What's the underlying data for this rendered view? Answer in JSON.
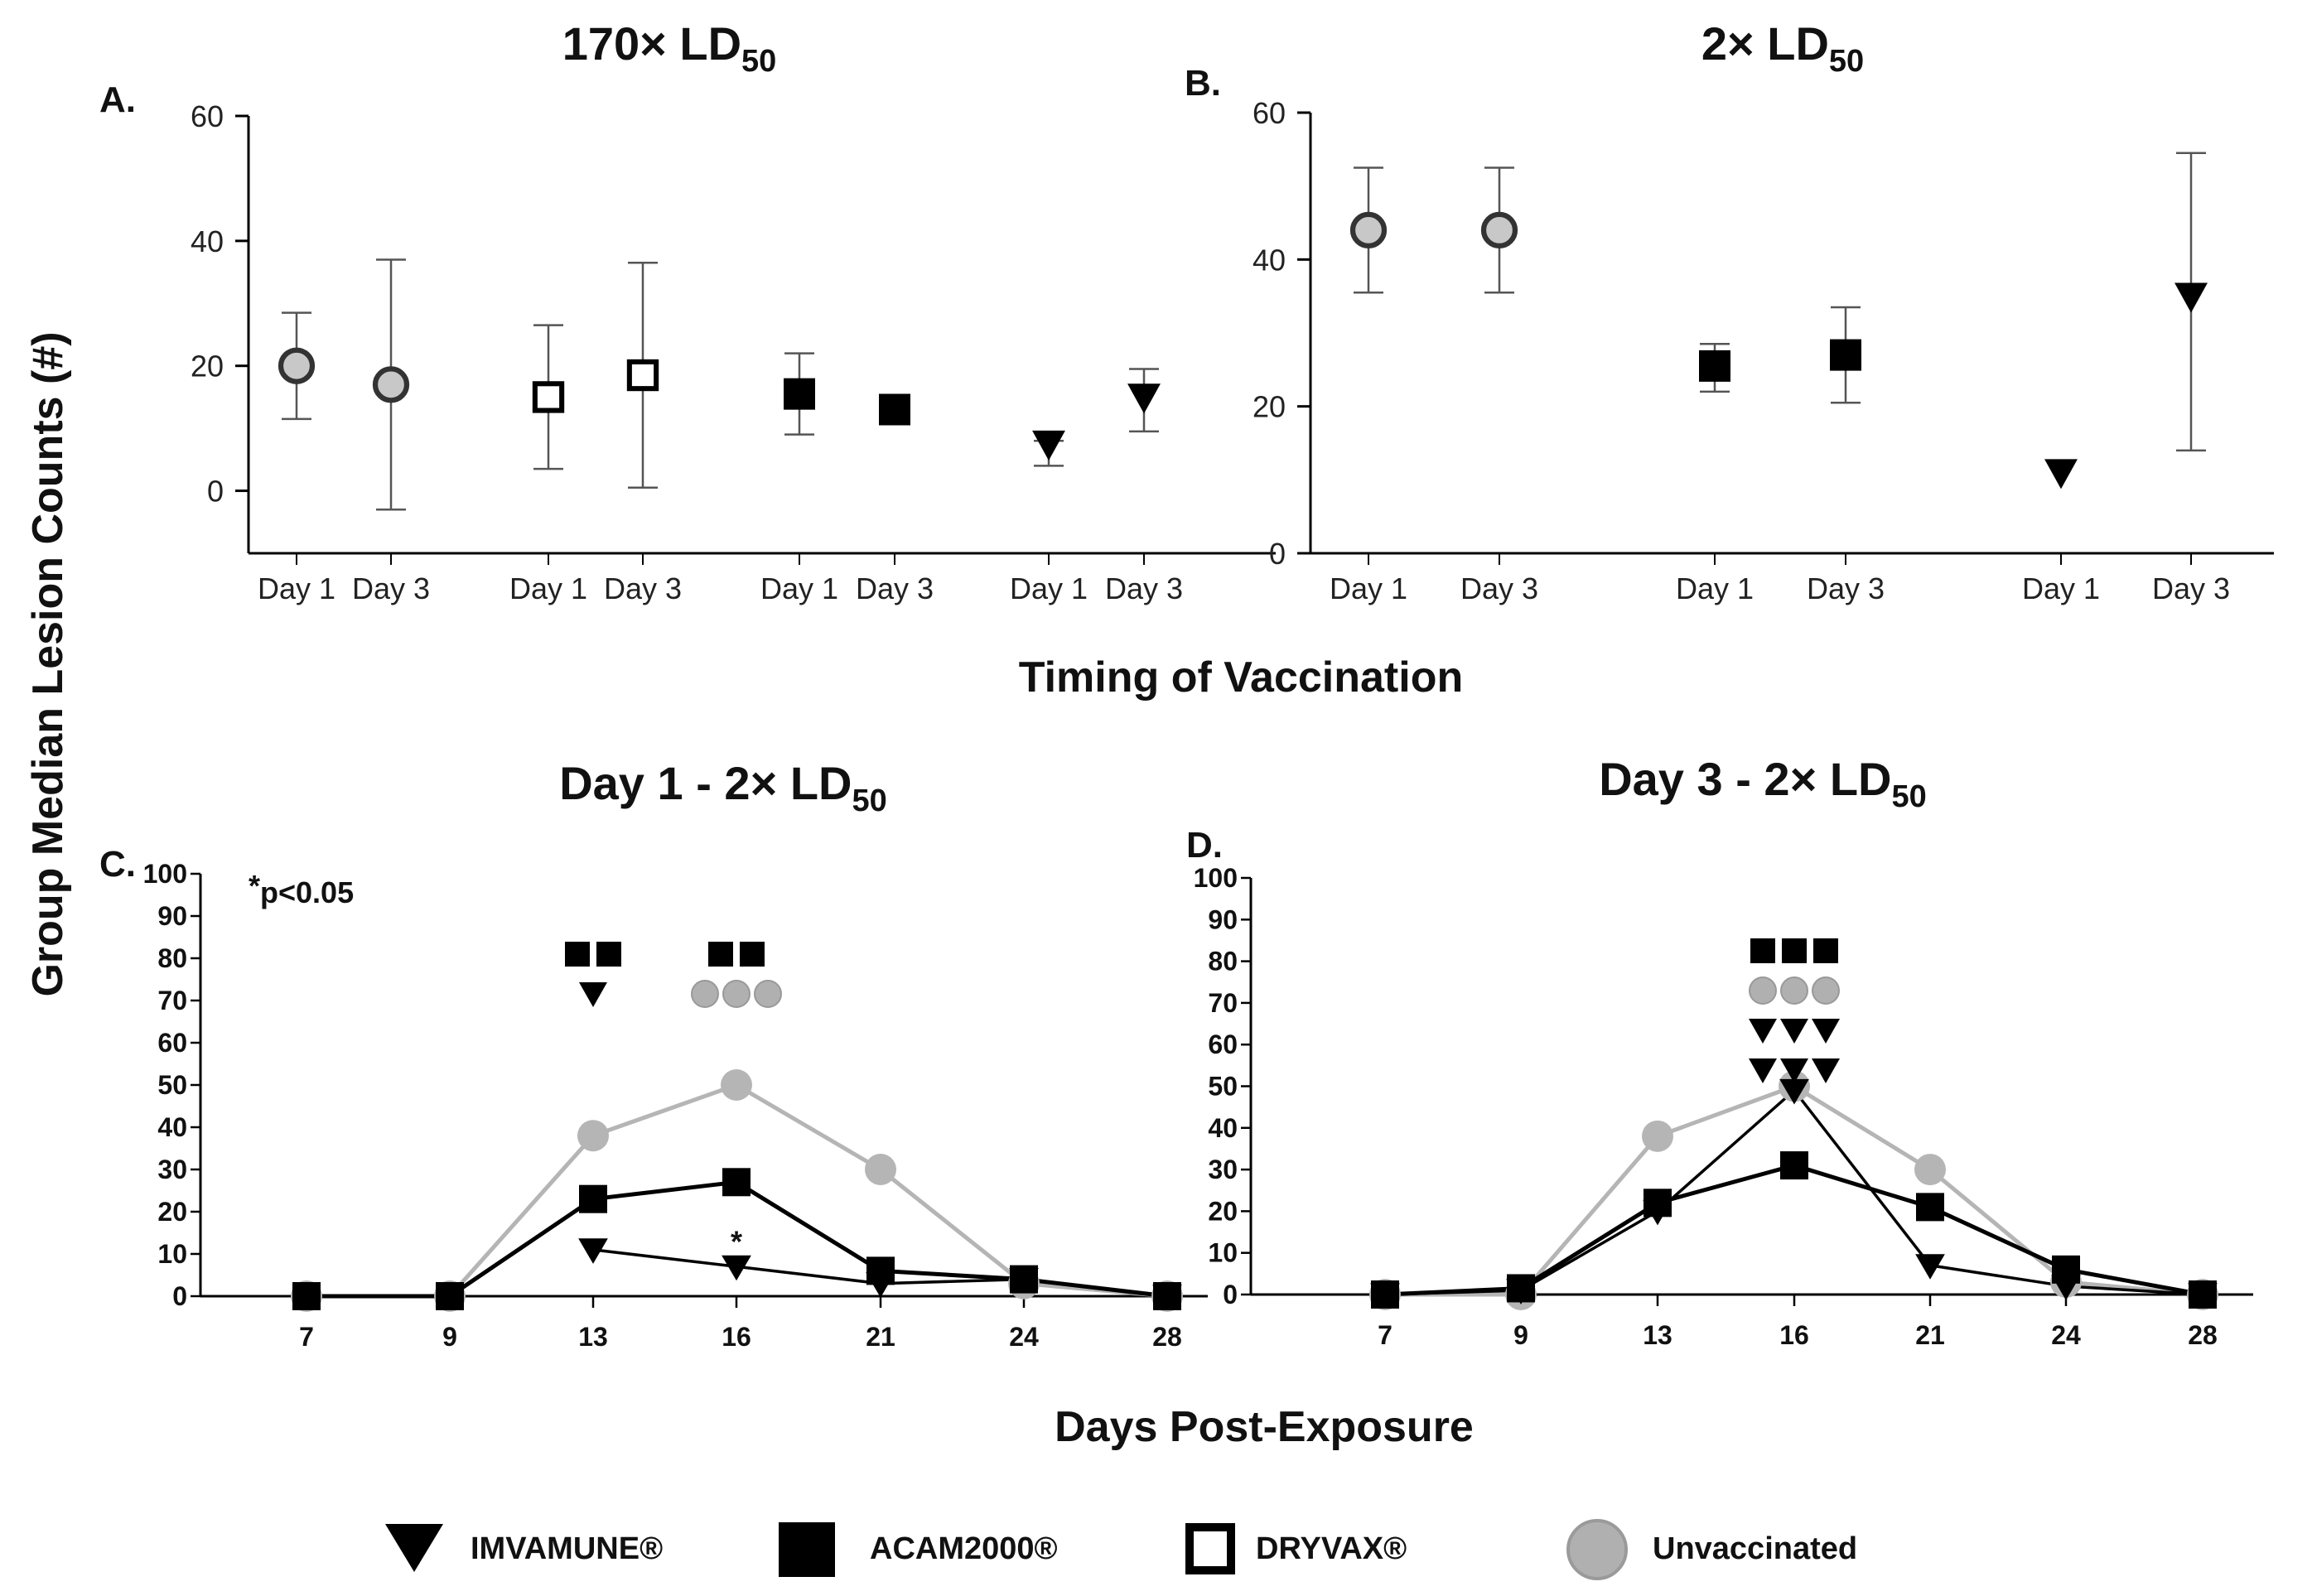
{
  "figure": {
    "ylabel": "Group Median Lesion Counts (#)",
    "xlabel_top": "Timing of Vaccination",
    "xlabel_bottom": "Days Post-Exposure",
    "subscript": "50",
    "legend": [
      {
        "name": "IMVAMUNE®",
        "marker": "triangle-down-icon"
      },
      {
        "name": "ACAM2000®",
        "marker": "filled-square-icon"
      },
      {
        "name": "DRYVAX®",
        "marker": "open-square-icon"
      },
      {
        "name": "Unvaccinated",
        "marker": "gray-circle-icon"
      }
    ]
  },
  "chart_data": [
    {
      "panel": "A.",
      "type": "scatter",
      "title": "170× LD",
      "ylim": [
        -10,
        60
      ],
      "yticks": [
        0,
        20,
        40,
        60
      ],
      "categories": [
        "Day 1",
        "Day 3",
        "Day 1",
        "Day 3",
        "Day 1",
        "Day 3",
        "Day 1",
        "Day 3"
      ],
      "series": [
        {
          "name": "Unvaccinated",
          "points": [
            {
              "cat": 0,
              "y": 20,
              "lo": 11.5,
              "hi": 28.5
            },
            {
              "cat": 1,
              "y": 17,
              "lo": -3,
              "hi": 37
            }
          ]
        },
        {
          "name": "DRYVAX®",
          "points": [
            {
              "cat": 2,
              "y": 15,
              "lo": 3.5,
              "hi": 26.5
            },
            {
              "cat": 3,
              "y": 18.5,
              "lo": 0.5,
              "hi": 36.5
            }
          ]
        },
        {
          "name": "ACAM2000®",
          "points": [
            {
              "cat": 4,
              "y": 15.5,
              "lo": 9,
              "hi": 22
            },
            {
              "cat": 5,
              "y": 13,
              "lo": 13,
              "hi": 13
            }
          ]
        },
        {
          "name": "IMVAMUNE®",
          "points": [
            {
              "cat": 6,
              "y": 7.5,
              "lo": 4,
              "hi": 8
            },
            {
              "cat": 7,
              "y": 15,
              "lo": 9.5,
              "hi": 19.5
            }
          ]
        }
      ]
    },
    {
      "panel": "B.",
      "type": "scatter",
      "title": "2× LD",
      "ylim": [
        0,
        60
      ],
      "yticks": [
        0,
        20,
        40,
        60
      ],
      "categories": [
        "Day 1",
        "Day 3",
        "Day 1",
        "Day 3",
        "Day 1",
        "Day 3"
      ],
      "series": [
        {
          "name": "Unvaccinated",
          "points": [
            {
              "cat": 0,
              "y": 44,
              "lo": 35.5,
              "hi": 52.5
            },
            {
              "cat": 1,
              "y": 44,
              "lo": 35.5,
              "hi": 52.5
            }
          ]
        },
        {
          "name": "ACAM2000®",
          "points": [
            {
              "cat": 2,
              "y": 25.5,
              "lo": 22,
              "hi": 28.5
            },
            {
              "cat": 3,
              "y": 27,
              "lo": 20.5,
              "hi": 33.5
            }
          ]
        },
        {
          "name": "IMVAMUNE®",
          "points": [
            {
              "cat": 4,
              "y": 11,
              "lo": 11,
              "hi": 11
            },
            {
              "cat": 5,
              "y": 35,
              "lo": 14,
              "hi": 54.5
            }
          ]
        }
      ]
    },
    {
      "panel": "C.",
      "type": "line",
      "title": "Day 1 - 2× LD",
      "ylim": [
        0,
        100
      ],
      "yticks": [
        0,
        10,
        20,
        30,
        40,
        50,
        60,
        70,
        80,
        90,
        100
      ],
      "categories": [
        "7",
        "9",
        "13",
        "16",
        "21",
        "24",
        "28"
      ],
      "series": [
        {
          "name": "Unvaccinated",
          "values": [
            0,
            0,
            38,
            50,
            30,
            3,
            0
          ]
        },
        {
          "name": "ACAM2000®",
          "values": [
            0,
            0,
            23,
            27,
            6,
            4,
            0
          ]
        },
        {
          "name": "IMVAMUNE®",
          "values": [
            null,
            null,
            11,
            7,
            3,
            4,
            0
          ]
        }
      ],
      "annotation": "p<0.05",
      "annotation_star": "*",
      "significance": [
        {
          "cat": 2,
          "squares": 2,
          "triangles": 1,
          "circles": 0
        },
        {
          "cat": 3,
          "squares": 2,
          "triangles": 0,
          "circles": 3,
          "star": "*"
        }
      ]
    },
    {
      "panel": "D.",
      "type": "line",
      "title": "Day 3 - 2× LD",
      "ylim": [
        0,
        100
      ],
      "yticks": [
        0,
        10,
        20,
        30,
        40,
        50,
        60,
        70,
        80,
        90,
        100
      ],
      "categories": [
        "7",
        "9",
        "13",
        "16",
        "21",
        "24",
        "28"
      ],
      "series": [
        {
          "name": "Unvaccinated",
          "values": [
            0,
            0,
            38,
            50,
            30,
            3,
            0
          ]
        },
        {
          "name": "ACAM2000®",
          "values": [
            0,
            1.5,
            22,
            31,
            21,
            6,
            0
          ]
        },
        {
          "name": "IMVAMUNE®",
          "values": [
            0,
            1,
            20,
            49,
            7,
            2,
            0
          ]
        }
      ],
      "significance": [
        {
          "cat": 3,
          "squares": 3,
          "triangles": 6,
          "circles": 3
        }
      ]
    }
  ]
}
